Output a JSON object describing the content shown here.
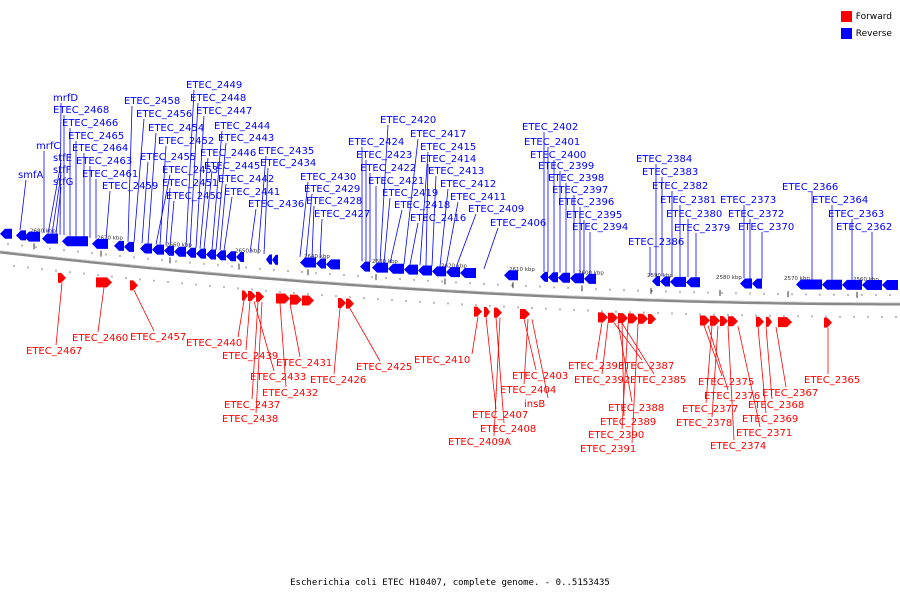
{
  "caption": "Escherichia coli ETEC H10407, complete genome. - 0..5153435",
  "legend": [
    {
      "label": "Forward",
      "color": "#ff0000"
    },
    {
      "label": "Reverse",
      "color": "#0000ff"
    }
  ],
  "colors": {
    "forward": "#ff0000",
    "reverse": "#0000ff",
    "backbone": "#777777"
  },
  "ticks": [
    "2680 kbp",
    "2670 kbp",
    "2660 kbp",
    "2650 kbp",
    "2640 kbp",
    "2630 kbp",
    "2620 kbp",
    "2610 kbp",
    "2600 kbp",
    "2590 kbp",
    "2580 kbp",
    "2570 kbp",
    "2560 kbp"
  ],
  "reverse_labels": [
    "smfA",
    "mrfC",
    "stfE",
    "stfF",
    "stfG",
    "mrfD",
    "ETEC_2468",
    "ETEC_2466",
    "ETEC_2465",
    "ETEC_2464",
    "ETEC_2463",
    "ETEC_2461",
    "ETEC_2459",
    "ETEC_2458",
    "ETEC_2456",
    "ETEC_2455",
    "ETEC_2454",
    "ETEC_2453",
    "ETEC_2452",
    "ETEC_2451",
    "ETEC_2450",
    "ETEC_2449",
    "ETEC_2448",
    "ETEC_2447",
    "ETEC_2446",
    "ETEC_2445",
    "ETEC_2444",
    "ETEC_2443",
    "ETEC_2442",
    "ETEC_2441",
    "ETEC_2436",
    "ETEC_2435",
    "ETEC_2434",
    "ETEC_2430",
    "ETEC_2429",
    "ETEC_2428",
    "ETEC_2427",
    "ETEC_2424",
    "ETEC_2423",
    "ETEC_2422",
    "ETEC_2421",
    "ETEC_2420",
    "ETEC_2419",
    "ETEC_2418",
    "ETEC_2417",
    "ETEC_2416",
    "ETEC_2415",
    "ETEC_2414",
    "ETEC_2413",
    "ETEC_2412",
    "ETEC_2411",
    "ETEC_2409",
    "ETEC_2406",
    "ETEC_2402",
    "ETEC_2401",
    "ETEC_2400",
    "ETEC_2399",
    "ETEC_2398",
    "ETEC_2397",
    "ETEC_2396",
    "ETEC_2395",
    "ETEC_2394",
    "ETEC_2386",
    "ETEC_2384",
    "ETEC_2383",
    "ETEC_2382",
    "ETEC_2381",
    "ETEC_2380",
    "ETEC_2379",
    "ETEC_2373",
    "ETEC_2372",
    "ETEC_2370",
    "ETEC_2366",
    "ETEC_2364",
    "ETEC_2363",
    "ETEC_2362"
  ],
  "forward_labels": [
    "ETEC_2467",
    "ETEC_2460",
    "ETEC_2457",
    "ETEC_2440",
    "ETEC_2439",
    "ETEC_2433",
    "ETEC_2437",
    "ETEC_2438",
    "ETEC_2432",
    "ETEC_2431",
    "ETEC_2426",
    "ETEC_2425",
    "ETEC_2410",
    "ETEC_2407",
    "ETEC_2408",
    "ETEC_2409A",
    "ETEC_2403",
    "ETEC_2404",
    "insB",
    "ETEC_2393",
    "ETEC_2392",
    "ETEC_2387",
    "ETEC_2385",
    "ETEC_2388",
    "ETEC_2389",
    "ETEC_2390",
    "ETEC_2391",
    "ETEC_2375",
    "ETEC_2376",
    "ETEC_2377",
    "ETEC_2378",
    "ETEC_2374",
    "ETEC_2371",
    "ETEC_2369",
    "ETEC_2368",
    "ETEC_2367",
    "ETEC_2365"
  ]
}
